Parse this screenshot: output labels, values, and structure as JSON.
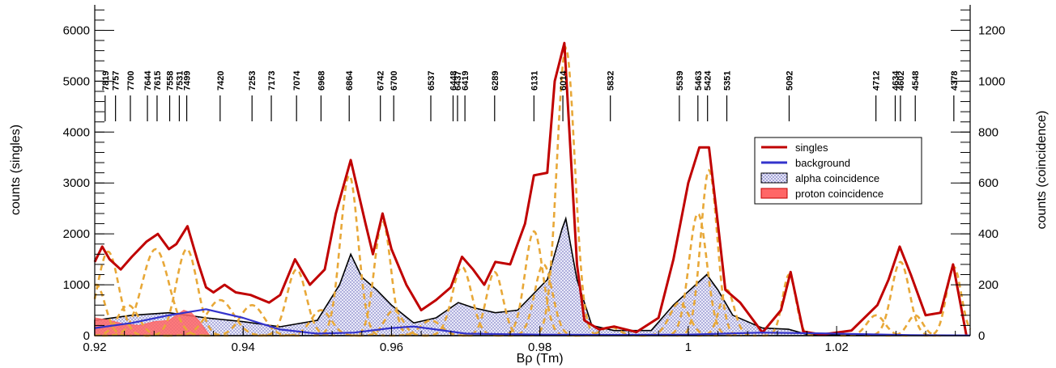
{
  "chart_data": {
    "type": "line",
    "title": "",
    "xlabel": "Bρ (Tm)",
    "ylabel_left": "counts (singles)",
    "ylabel_right": "counts (coincidence)",
    "xlim": [
      0.92,
      1.038
    ],
    "ylim_left": [
      0,
      6500
    ],
    "ylim_right": [
      0,
      1300
    ],
    "x_ticks": [
      0.92,
      0.94,
      0.96,
      0.98,
      1.0,
      1.02
    ],
    "x_tick_labels": [
      "0.92",
      "0.94",
      "0.96",
      "0.98",
      "1",
      "1.02"
    ],
    "y_ticks_left": [
      0,
      1000,
      2000,
      3000,
      4000,
      5000,
      6000
    ],
    "y_ticks_right": [
      0,
      200,
      400,
      600,
      800,
      1000,
      1200
    ],
    "grid": false,
    "legend_position": "right",
    "legend": [
      {
        "label": "singles",
        "color": "#c00000",
        "style": "line"
      },
      {
        "label": "background",
        "color": "#3333cc",
        "style": "line"
      },
      {
        "label": "alpha coincidence",
        "color": "#000000",
        "style": "hatched-fill"
      },
      {
        "label": "proton coincidence",
        "color": "#ff6666",
        "style": "fill"
      }
    ],
    "level_markers": [
      {
        "label": "7819",
        "x": 0.9214
      },
      {
        "label": "7757",
        "x": 0.9228
      },
      {
        "label": "7700",
        "x": 0.9248
      },
      {
        "label": "7644",
        "x": 0.9271
      },
      {
        "label": "7615",
        "x": 0.9284
      },
      {
        "label": "7558",
        "x": 0.9301
      },
      {
        "label": "7531",
        "x": 0.9314
      },
      {
        "label": "7499",
        "x": 0.9324
      },
      {
        "label": "7420",
        "x": 0.9369
      },
      {
        "label": "7253",
        "x": 0.9412
      },
      {
        "label": "7173",
        "x": 0.9438
      },
      {
        "label": "7074",
        "x": 0.9472
      },
      {
        "label": "6968",
        "x": 0.9505
      },
      {
        "label": "6864",
        "x": 0.9543
      },
      {
        "label": "6742",
        "x": 0.9585
      },
      {
        "label": "6700",
        "x": 0.9603
      },
      {
        "label": "6537",
        "x": 0.9653
      },
      {
        "label": "6448",
        "x": 0.9683
      },
      {
        "label": "6437",
        "x": 0.9689
      },
      {
        "label": "6419",
        "x": 0.9699
      },
      {
        "label": "6289",
        "x": 0.9739
      },
      {
        "label": "6131",
        "x": 0.9792
      },
      {
        "label": "6014",
        "x": 0.9831
      },
      {
        "label": "5832",
        "x": 0.9895
      },
      {
        "label": "5539",
        "x": 0.9988
      },
      {
        "label": "5463",
        "x": 1.0013
      },
      {
        "label": "5424",
        "x": 1.0026
      },
      {
        "label": "5351",
        "x": 1.0052
      },
      {
        "label": "5092",
        "x": 1.0136
      },
      {
        "label": "4712",
        "x": 1.0253
      },
      {
        "label": "4634",
        "x": 1.0279
      },
      {
        "label": "4602",
        "x": 1.0286
      },
      {
        "label": "4548",
        "x": 1.0306
      },
      {
        "label": "4378",
        "x": 1.0358
      }
    ],
    "series": [
      {
        "name": "singles",
        "axis": "left",
        "color": "#c00000",
        "x": [
          0.92,
          0.921,
          0.922,
          0.9235,
          0.925,
          0.927,
          0.9285,
          0.93,
          0.931,
          0.9325,
          0.934,
          0.935,
          0.936,
          0.9375,
          0.939,
          0.941,
          0.9435,
          0.945,
          0.947,
          0.949,
          0.951,
          0.9525,
          0.9545,
          0.9565,
          0.9575,
          0.9588,
          0.96,
          0.962,
          0.964,
          0.966,
          0.968,
          0.9695,
          0.971,
          0.9725,
          0.974,
          0.976,
          0.978,
          0.9792,
          0.981,
          0.982,
          0.9833,
          0.985,
          0.986,
          0.988,
          0.99,
          0.993,
          0.996,
          0.998,
          1.0,
          1.0015,
          1.0028,
          1.004,
          1.005,
          1.007,
          1.01,
          1.0125,
          1.0138,
          1.0155,
          1.018,
          1.022,
          1.0255,
          1.027,
          1.0285,
          1.03,
          1.032,
          1.034,
          1.0357,
          1.0375
        ],
        "y": [
          1450,
          1750,
          1500,
          1300,
          1550,
          1850,
          2000,
          1700,
          1800,
          2150,
          1400,
          950,
          850,
          1000,
          850,
          800,
          650,
          800,
          1500,
          1000,
          1300,
          2400,
          3450,
          2200,
          1600,
          2400,
          1700,
          1000,
          500,
          700,
          950,
          1550,
          1300,
          1000,
          1450,
          1400,
          2200,
          3150,
          3200,
          5000,
          5750,
          1400,
          300,
          120,
          180,
          70,
          350,
          1500,
          3000,
          3700,
          3700,
          2200,
          900,
          650,
          60,
          500,
          1250,
          80,
          20,
          100,
          600,
          1100,
          1750,
          1200,
          400,
          450,
          1400,
          0
        ]
      },
      {
        "name": "background",
        "axis": "left",
        "color": "#3333cc",
        "x": [
          0.92,
          0.925,
          0.93,
          0.935,
          0.94,
          0.945,
          0.95,
          0.955,
          0.96,
          0.963,
          0.966,
          0.97,
          0.98,
          0.99,
          1.0,
          1.01,
          1.02,
          1.03,
          1.038
        ],
        "y": [
          150,
          250,
          400,
          520,
          350,
          120,
          40,
          60,
          150,
          180,
          120,
          40,
          20,
          15,
          20,
          60,
          40,
          10,
          5
        ]
      },
      {
        "name": "alpha coincidence",
        "axis": "right",
        "color": "#000000",
        "x": [
          0.92,
          0.925,
          0.93,
          0.935,
          0.94,
          0.945,
          0.95,
          0.953,
          0.9545,
          0.956,
          0.958,
          0.96,
          0.963,
          0.966,
          0.969,
          0.971,
          0.974,
          0.977,
          0.979,
          0.981,
          0.983,
          0.9835,
          0.985,
          0.987,
          0.99,
          0.995,
          0.998,
          1.001,
          1.0025,
          1.004,
          1.006,
          1.01,
          1.0135,
          1.016,
          1.038
        ],
        "y": [
          60,
          80,
          90,
          70,
          55,
          35,
          60,
          200,
          320,
          230,
          180,
          120,
          50,
          70,
          130,
          110,
          90,
          100,
          160,
          220,
          420,
          460,
          220,
          40,
          20,
          20,
          120,
          200,
          240,
          180,
          80,
          30,
          25,
          5,
          0
        ]
      },
      {
        "name": "proton coincidence",
        "axis": "right",
        "color": "#ff6666",
        "x": [
          0.92,
          0.922,
          0.924,
          0.926,
          0.928,
          0.93,
          0.931,
          0.932,
          0.933,
          0.934,
          0.9355
        ],
        "y": [
          70,
          60,
          45,
          40,
          55,
          60,
          80,
          100,
          90,
          60,
          0
        ]
      }
    ],
    "fit_components_color": "#e8a838",
    "fit_components": [
      {
        "center": 0.9202,
        "height": 1000,
        "width": 0.0012
      },
      {
        "center": 0.9218,
        "height": 1650,
        "width": 0.0014
      },
      {
        "center": 0.9245,
        "height": 600,
        "width": 0.0014
      },
      {
        "center": 0.9282,
        "height": 1700,
        "width": 0.0018
      },
      {
        "center": 0.9324,
        "height": 1700,
        "width": 0.0014
      },
      {
        "center": 0.9369,
        "height": 700,
        "width": 0.0018
      },
      {
        "center": 0.9412,
        "height": 600,
        "width": 0.0016
      },
      {
        "center": 0.9472,
        "height": 1300,
        "width": 0.0013
      },
      {
        "center": 0.9505,
        "height": 500,
        "width": 0.0014
      },
      {
        "center": 0.9543,
        "height": 3150,
        "width": 0.0012
      },
      {
        "center": 0.9588,
        "height": 2250,
        "width": 0.0011
      },
      {
        "center": 0.9603,
        "height": 500,
        "width": 0.0012
      },
      {
        "center": 0.9653,
        "height": 300,
        "width": 0.0014
      },
      {
        "center": 0.9695,
        "height": 1350,
        "width": 0.0013
      },
      {
        "center": 0.9739,
        "height": 1250,
        "width": 0.0011
      },
      {
        "center": 0.9792,
        "height": 2050,
        "width": 0.0012
      },
      {
        "center": 0.9805,
        "height": 1400,
        "width": 0.0012
      },
      {
        "center": 0.9835,
        "height": 5650,
        "width": 0.0012
      },
      {
        "center": 0.9895,
        "height": 170,
        "width": 0.0012
      },
      {
        "center": 0.9988,
        "height": 650,
        "width": 0.0013
      },
      {
        "center": 1.0013,
        "height": 2400,
        "width": 0.0012
      },
      {
        "center": 1.0028,
        "height": 3250,
        "width": 0.0011
      },
      {
        "center": 1.0052,
        "height": 900,
        "width": 0.001
      },
      {
        "center": 1.0136,
        "height": 1200,
        "width": 0.0009
      },
      {
        "center": 1.0253,
        "height": 400,
        "width": 0.0012
      },
      {
        "center": 1.0286,
        "height": 1450,
        "width": 0.0012
      },
      {
        "center": 1.0306,
        "height": 400,
        "width": 0.001
      },
      {
        "center": 1.0358,
        "height": 1350,
        "width": 0.001
      }
    ]
  }
}
